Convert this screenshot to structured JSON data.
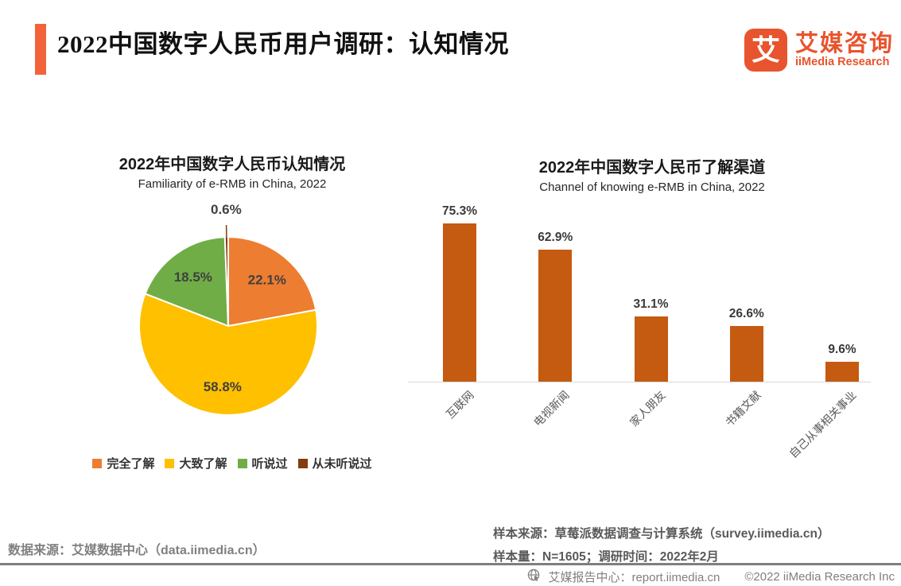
{
  "header": {
    "title": "2022中国数字人民币用户调研：认知情况",
    "logo": {
      "icon_glyph": "艾",
      "brand_cn": "艾媒咨询",
      "brand_en": "iiMedia Research"
    }
  },
  "colors": {
    "accent": "#F2633C",
    "logo_orange": "#E8542D",
    "bar": "#C55A11",
    "axis": "#D9D9D9",
    "pie_label": "#404040",
    "category_gray": "#595959"
  },
  "chart_data": [
    {
      "type": "pie",
      "title": "2022年中国数字人民币认知情况",
      "subtitle": "Familiarity of e-RMB in China, 2022",
      "start_angle": "top",
      "direction": "clockwise",
      "legend_position": "bottom",
      "slices": [
        {
          "label": "完全了解",
          "value": 22.1,
          "color": "#ED7D31"
        },
        {
          "label": "大致了解",
          "value": 58.8,
          "color": "#FFC000"
        },
        {
          "label": "听说过",
          "value": 18.5,
          "color": "#70AD47"
        },
        {
          "label": "从未听说过",
          "value": 0.6,
          "color": "#843C0C"
        }
      ]
    },
    {
      "type": "bar",
      "title": "2022年中国数字人民币了解渠道",
      "subtitle": "Channel of knowing e-RMB in China, 2022",
      "categories": [
        "互联网",
        "电视新闻",
        "家人朋友",
        "书籍文献",
        "自己从事相关事业"
      ],
      "values": [
        75.3,
        62.9,
        31.1,
        26.6,
        9.6
      ],
      "unit": "%",
      "ylim": [
        0,
        80
      ],
      "grid": false,
      "value_labels": true,
      "legend_position": "none"
    }
  ],
  "footnotes": {
    "data_source": "数据来源：艾媒数据中心（data.iimedia.cn）",
    "sample_source": "样本来源：草莓派数据调查与计算系统（survey.iimedia.cn）",
    "sample_size": "样本量：N=1605；调研时间：2022年2月"
  },
  "footer": {
    "report_center": "艾媒报告中心：report.iimedia.cn",
    "copyright": "©2022 iiMedia Research Inc"
  }
}
